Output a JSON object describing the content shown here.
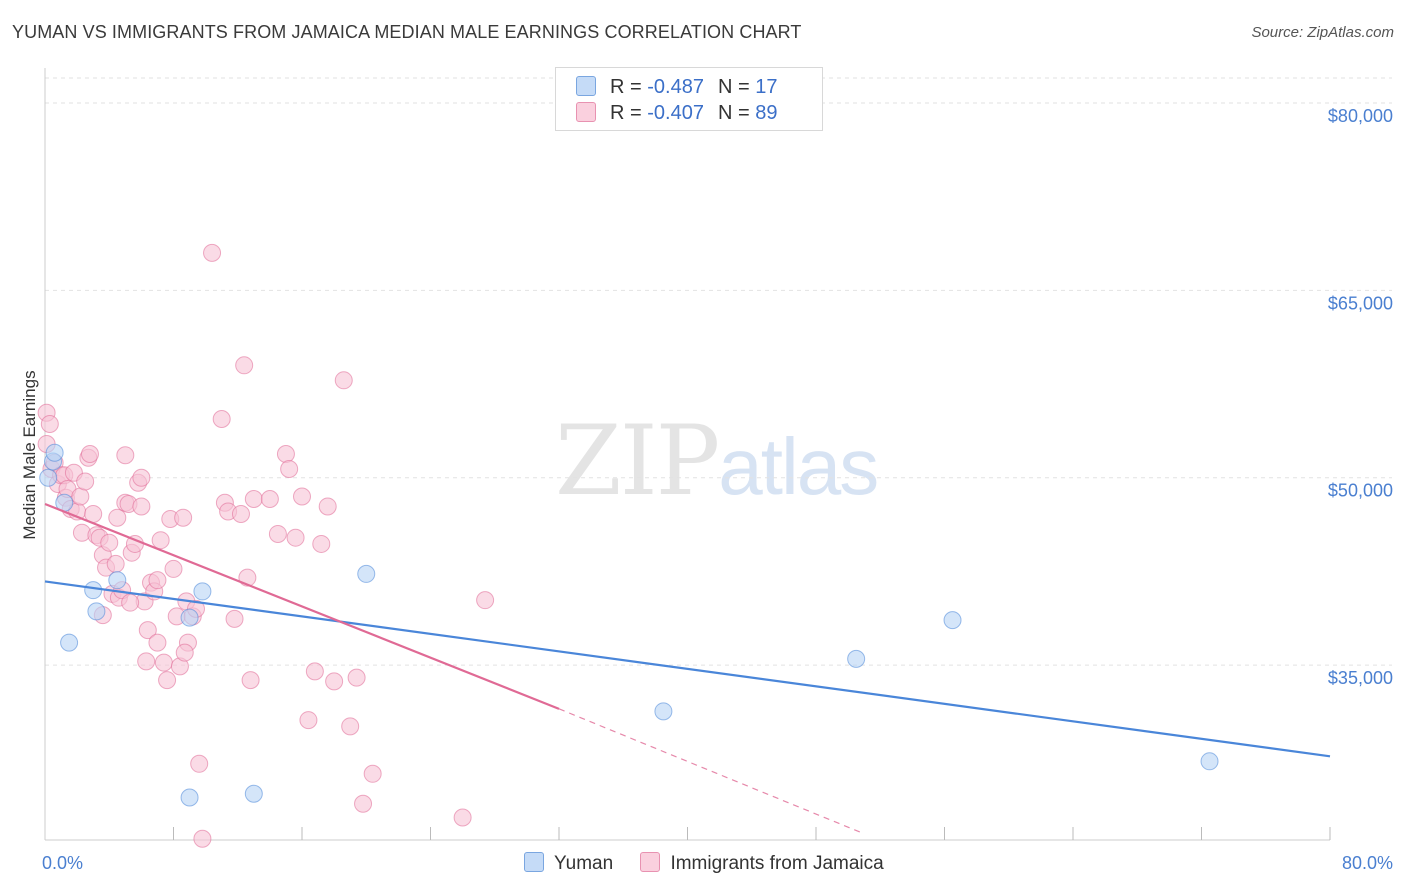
{
  "header": {
    "title": "YUMAN VS IMMIGRANTS FROM JAMAICA MEDIAN MALE EARNINGS CORRELATION CHART",
    "source": "Source: ZipAtlas.com"
  },
  "watermark": {
    "zip": "ZIP",
    "atlas": "atlas"
  },
  "legend": {
    "rows": [
      {
        "r_label": "R = ",
        "r_value": "-0.487",
        "n_label": "N = ",
        "n_value": "17",
        "color": "#a9c9f2"
      },
      {
        "r_label": "R = ",
        "r_value": "-0.407",
        "n_label": "N = ",
        "n_value": "89",
        "color": "#f7b9cf"
      }
    ]
  },
  "bottom_legend": [
    {
      "label": "Yuman",
      "color": "#a9c9f2"
    },
    {
      "label": "Immigrants from Jamaica",
      "color": "#f7b9cf"
    }
  ],
  "chart_data": {
    "type": "scatter",
    "ylabel": "Median Male Earnings",
    "x_tick_labels": [
      "0.0%",
      "80.0%"
    ],
    "y_tick_labels": [
      "$35,000",
      "$50,000",
      "$65,000",
      "$80,000"
    ],
    "y_ticks": [
      35000,
      50000,
      65000,
      80000
    ],
    "xlim": [
      0,
      80
    ],
    "ylim": [
      21000,
      82000
    ],
    "grid": true,
    "series": [
      {
        "name": "Yuman",
        "color": "#4a86d9",
        "fill": "#b8d3f5",
        "trend": {
          "x": [
            0,
            80
          ],
          "y": [
            41700,
            27700
          ]
        },
        "points": [
          [
            0.2,
            50000
          ],
          [
            0.5,
            51300
          ],
          [
            1.2,
            48000
          ],
          [
            1.5,
            36800
          ],
          [
            3,
            41000
          ],
          [
            3.2,
            39300
          ],
          [
            4.5,
            41800
          ],
          [
            9,
            38800
          ],
          [
            9.8,
            40900
          ],
          [
            9,
            24400
          ],
          [
            13,
            24700
          ],
          [
            20,
            42300
          ],
          [
            38.5,
            31300
          ],
          [
            50.5,
            35500
          ],
          [
            56.5,
            38600
          ],
          [
            72.5,
            27300
          ],
          [
            0.6,
            52000
          ]
        ]
      },
      {
        "name": "Immigrants from Jamaica",
        "color": "#e06a95",
        "fill": "#f7c3d5",
        "trend": {
          "x": [
            0,
            32
          ],
          "y": [
            47900,
            31500
          ]
        },
        "trend_dashed": {
          "x": [
            32,
            51
          ],
          "y": [
            31500,
            21500
          ]
        },
        "points": [
          [
            0.1,
            55200
          ],
          [
            0.1,
            52700
          ],
          [
            0.3,
            54300
          ],
          [
            0.4,
            50700
          ],
          [
            0.6,
            51200
          ],
          [
            0.8,
            49500
          ],
          [
            1,
            50200
          ],
          [
            1.2,
            50200
          ],
          [
            1.3,
            48400
          ],
          [
            1.4,
            49100
          ],
          [
            1.6,
            47500
          ],
          [
            1.8,
            50400
          ],
          [
            2,
            47300
          ],
          [
            2.2,
            48500
          ],
          [
            2.3,
            45600
          ],
          [
            2.5,
            49700
          ],
          [
            2.7,
            51600
          ],
          [
            2.8,
            51900
          ],
          [
            3,
            47100
          ],
          [
            3.2,
            45400
          ],
          [
            3.4,
            45200
          ],
          [
            3.6,
            43800
          ],
          [
            3.6,
            39000
          ],
          [
            3.8,
            42800
          ],
          [
            4,
            44800
          ],
          [
            4.2,
            40700
          ],
          [
            4.4,
            43100
          ],
          [
            4.5,
            46800
          ],
          [
            4.6,
            40400
          ],
          [
            4.8,
            41000
          ],
          [
            5,
            51800
          ],
          [
            5,
            48000
          ],
          [
            5.2,
            47900
          ],
          [
            5.4,
            44000
          ],
          [
            5.6,
            44700
          ],
          [
            5.8,
            49600
          ],
          [
            6,
            50000
          ],
          [
            6,
            47700
          ],
          [
            6.2,
            40100
          ],
          [
            6.4,
            37800
          ],
          [
            6.6,
            41600
          ],
          [
            6.8,
            40900
          ],
          [
            7,
            41800
          ],
          [
            7,
            36800
          ],
          [
            7.2,
            45000
          ],
          [
            7.4,
            35200
          ],
          [
            7.6,
            33800
          ],
          [
            7.8,
            46700
          ],
          [
            8,
            42700
          ],
          [
            8.2,
            38900
          ],
          [
            8.4,
            34900
          ],
          [
            8.6,
            46800
          ],
          [
            8.8,
            40100
          ],
          [
            8.9,
            36800
          ],
          [
            9.2,
            38900
          ],
          [
            9.4,
            39500
          ],
          [
            9.6,
            27100
          ],
          [
            9.8,
            21100
          ],
          [
            10.4,
            68000
          ],
          [
            11,
            54700
          ],
          [
            11.2,
            48000
          ],
          [
            11.4,
            47300
          ],
          [
            11.8,
            38700
          ],
          [
            12.2,
            47100
          ],
          [
            12.4,
            59000
          ],
          [
            12.6,
            42000
          ],
          [
            12.8,
            33800
          ],
          [
            13,
            48300
          ],
          [
            14,
            48300
          ],
          [
            14.5,
            45500
          ],
          [
            15,
            51900
          ],
          [
            15.2,
            50700
          ],
          [
            15.6,
            45200
          ],
          [
            16,
            48500
          ],
          [
            16.4,
            30600
          ],
          [
            16.8,
            34500
          ],
          [
            17.2,
            44700
          ],
          [
            17.6,
            47700
          ],
          [
            18,
            33700
          ],
          [
            18.6,
            57800
          ],
          [
            19,
            30100
          ],
          [
            19.4,
            34000
          ],
          [
            19.8,
            23900
          ],
          [
            20.4,
            26300
          ],
          [
            26,
            22800
          ],
          [
            27.4,
            40200
          ],
          [
            8.7,
            36000
          ],
          [
            6.3,
            35300
          ],
          [
            5.3,
            40000
          ]
        ]
      }
    ]
  }
}
